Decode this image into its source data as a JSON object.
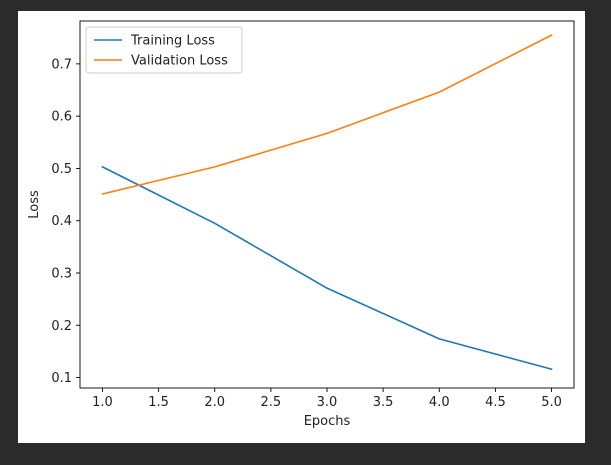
{
  "chart_data": {
    "type": "line",
    "title": "",
    "xlabel": "Epochs",
    "ylabel": "Loss",
    "x": [
      1,
      2,
      3,
      4,
      5
    ],
    "xlim": [
      0.8,
      5.2
    ],
    "ylim": [
      0.08,
      0.782
    ],
    "xticks": [
      1.0,
      1.5,
      2.0,
      2.5,
      3.0,
      3.5,
      4.0,
      4.5,
      5.0
    ],
    "yticks": [
      0.1,
      0.2,
      0.3,
      0.4,
      0.5,
      0.6,
      0.7
    ],
    "xtick_labels": [
      "1.0",
      "1.5",
      "2.0",
      "2.5",
      "3.0",
      "3.5",
      "4.0",
      "4.5",
      "5.0"
    ],
    "ytick_labels": [
      "0.1",
      "0.2",
      "0.3",
      "0.4",
      "0.5",
      "0.6",
      "0.7"
    ],
    "grid": false,
    "legend": "upper-left",
    "series": [
      {
        "name": "Training Loss",
        "color": "#1f77b4",
        "values": [
          0.503,
          0.395,
          0.271,
          0.174,
          0.116
        ]
      },
      {
        "name": "Validation Loss",
        "color": "#ff7f0e",
        "values": [
          0.451,
          0.503,
          0.567,
          0.646,
          0.755
        ]
      }
    ]
  }
}
